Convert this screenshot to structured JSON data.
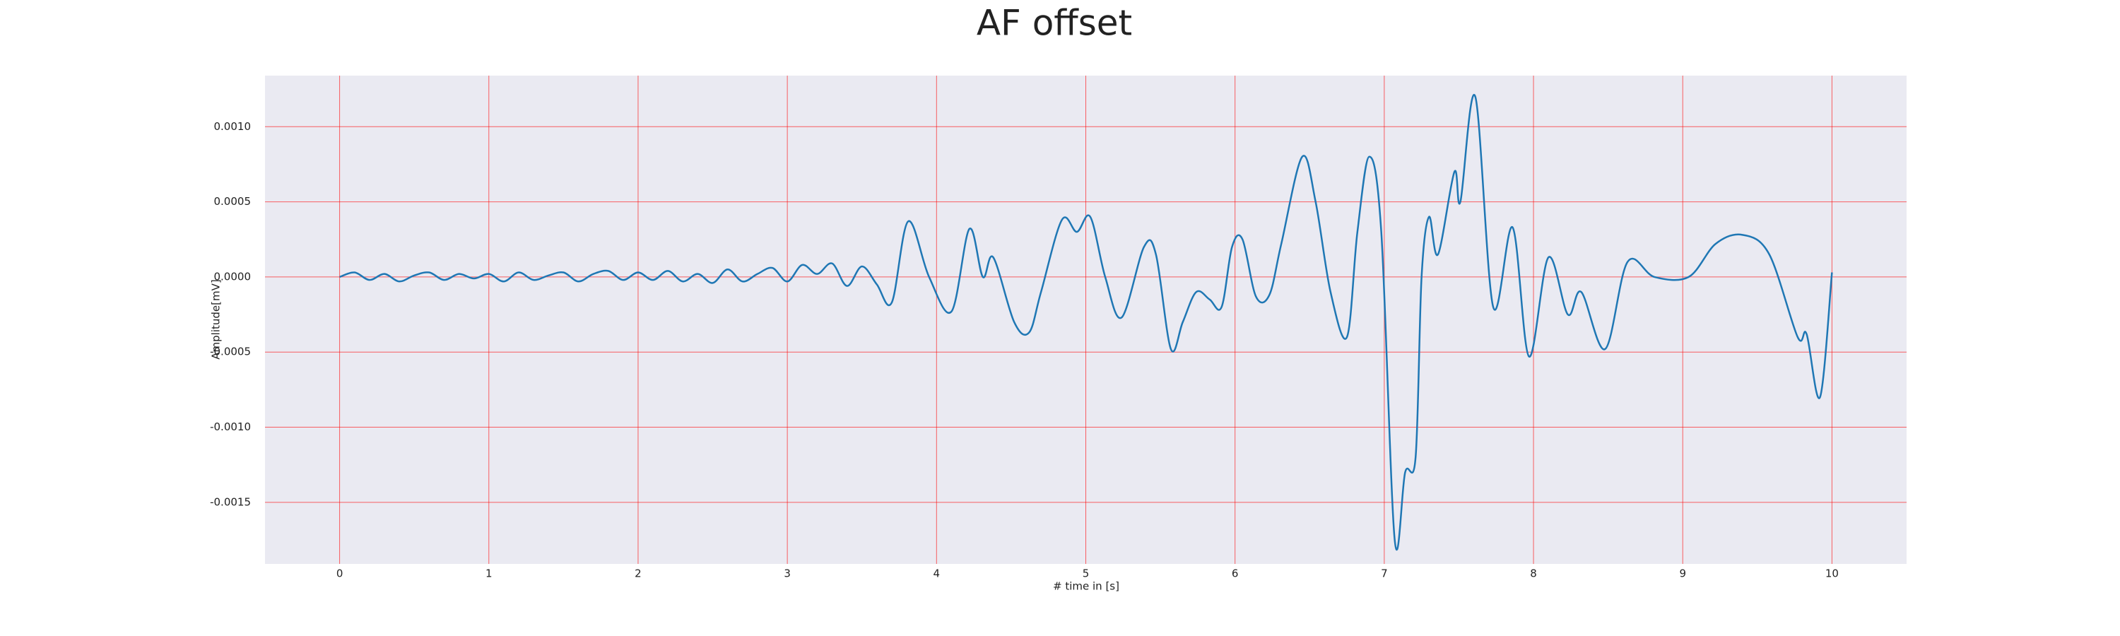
{
  "chart_data": {
    "type": "line",
    "title": "AF offset",
    "x_label": "# time in [s]",
    "y_label": "Amplitude[mV]",
    "x": [
      0,
      0.1,
      0.2,
      0.3,
      0.4,
      0.5,
      0.6,
      0.7,
      0.8,
      0.9,
      1.0,
      1.1,
      1.2,
      1.3,
      1.4,
      1.5,
      1.6,
      1.7,
      1.8,
      1.9,
      2.0,
      2.1,
      2.2,
      2.3,
      2.4,
      2.5,
      2.6,
      2.7,
      2.8,
      2.9,
      3.0,
      3.1,
      3.2,
      3.3,
      3.4,
      3.5,
      3.6,
      3.7,
      3.81,
      3.95,
      4.1,
      4.22,
      4.31,
      4.38,
      4.52,
      4.62,
      4.7,
      4.84,
      4.94,
      5.03,
      5.13,
      5.24,
      5.39,
      5.47,
      5.57,
      5.65,
      5.74,
      5.83,
      5.91,
      5.98,
      6.05,
      6.14,
      6.23,
      6.31,
      6.45,
      6.54,
      6.64,
      6.75,
      6.82,
      6.9,
      6.98,
      7.07,
      7.14,
      7.21,
      7.25,
      7.3,
      7.36,
      7.47,
      7.51,
      7.61,
      7.73,
      7.86,
      7.97,
      8.1,
      8.23,
      8.32,
      8.48,
      8.63,
      8.81,
      9.04,
      9.22,
      9.4,
      9.58,
      9.77,
      9.83,
      9.92,
      10
    ],
    "values": [
      0,
      3e-05,
      -2e-05,
      2e-05,
      -3e-05,
      1e-05,
      3e-05,
      -2e-05,
      2e-05,
      -1e-05,
      2e-05,
      -3e-05,
      3e-05,
      -2e-05,
      1e-05,
      3e-05,
      -3e-05,
      2e-05,
      4e-05,
      -2e-05,
      3e-05,
      -2e-05,
      4e-05,
      -3e-05,
      2e-05,
      -4e-05,
      5e-05,
      -3e-05,
      2e-05,
      6e-05,
      -3e-05,
      8e-05,
      2e-05,
      9e-05,
      -6e-05,
      7e-05,
      -5e-05,
      -0.00017,
      0.00037,
      0,
      -0.00023,
      0.00032,
      0,
      0.00013,
      -0.0003,
      -0.00037,
      -0.0001,
      0.00038,
      0.0003,
      0.0004,
      0,
      -0.00027,
      0.0002,
      0.00015,
      -0.00048,
      -0.0003,
      -0.0001,
      -0.00015,
      -0.0002,
      0.0002,
      0.00025,
      -0.00013,
      -0.00012,
      0.00022,
      0.0008,
      0.0005,
      -0.0001,
      -0.0004,
      0.0003,
      0.0008,
      0.0003,
      -0.00175,
      -0.0013,
      -0.0012,
      0,
      0.0004,
      0.00015,
      0.0007,
      0.0005,
      0.0012,
      -0.0002,
      0.00033,
      -0.00053,
      0.00013,
      -0.00025,
      -0.0001,
      -0.00048,
      0.0001,
      0,
      0,
      0.00022,
      0.00028,
      0.00015,
      -0.0004,
      -0.00038,
      -0.0008,
      3e-05
    ],
    "color": "#1f77b4",
    "grid": true,
    "grid_color": "#ff0000",
    "xlim": [
      -0.5,
      10.5
    ],
    "xticks": [
      0,
      1,
      2,
      3,
      4,
      5,
      6,
      7,
      8,
      9,
      10
    ],
    "ylim": [
      -0.00191,
      0.00134
    ],
    "yticks": [
      {
        "value": -0.0015,
        "label": "-0.0015"
      },
      {
        "value": -0.001,
        "label": "-0.0010"
      },
      {
        "value": -0.0005,
        "label": "-0.0005"
      },
      {
        "value": 0,
        "label": "0.0000"
      },
      {
        "value": 0.0005,
        "label": "0.0005"
      },
      {
        "value": 0.001,
        "label": "0.0010"
      }
    ]
  }
}
